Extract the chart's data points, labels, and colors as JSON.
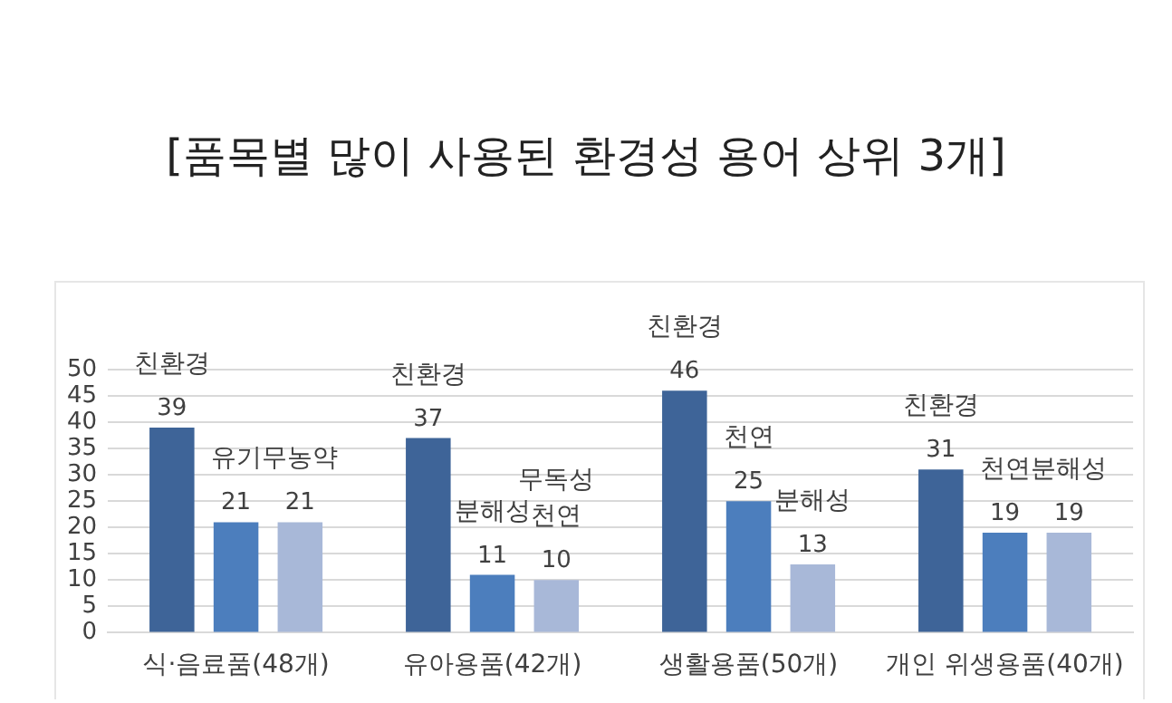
{
  "chart_data": {
    "type": "bar",
    "title": "[품목별 많이 사용된 환경성 용어 상위 3개]",
    "categories": [
      "식·음료품(48개)",
      "유아용품(42개)",
      "생활용품(50개)",
      "개인 위생용품(40개)"
    ],
    "series": [
      {
        "color": "#3e6498",
        "values": [
          39,
          37,
          46,
          31
        ],
        "value_labels": [
          "친환경\n39",
          "친환경\n37",
          "친환경\n46",
          "친환경\n31"
        ]
      },
      {
        "color": "#4c7ebd",
        "values": [
          21,
          11,
          25,
          19
        ],
        "value_labels": [
          "유기\n21",
          "분해성\n11",
          "천연\n25",
          "천연\n19"
        ]
      },
      {
        "color": "#a8b8d8",
        "values": [
          21,
          10,
          13,
          19
        ],
        "value_labels": [
          "무농약\n21",
          "무독성\n천연\n10",
          "분해성\n13",
          "분해성\n19"
        ]
      }
    ],
    "ylim": [
      0,
      50
    ],
    "yticks": [
      0,
      5,
      10,
      15,
      20,
      25,
      30,
      35,
      40,
      45,
      50
    ],
    "grid": "y",
    "legend": false
  }
}
